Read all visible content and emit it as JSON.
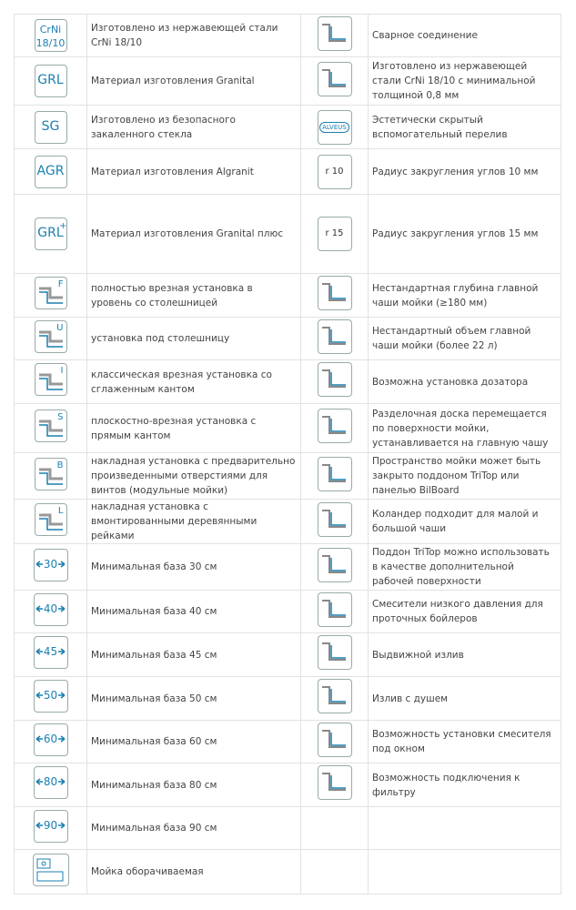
{
  "rows": [
    {
      "icon": "CrNi",
      "icon_sub": "18/10",
      "text": "Изготовлено из нержавеющей стали CrNi 18/10",
      "text2": "Сварное соединение"
    },
    {
      "icon": "GRL",
      "text": "Материал изготовления Granital",
      "text2": "Изготовлено из нержавеющей стали CrNi 18/10 с минимальной толщиной 0,8 мм"
    },
    {
      "icon": "SG",
      "text": "Изготовлено из безопасного закаленного стекла",
      "icon2": "ALVEUS",
      "text2": "Эстетически скрытый вспомогательный перелив"
    },
    {
      "icon": "AGR",
      "text": "Материал изготовления Algranit",
      "icon2": "r 10",
      "text2": "Радиус закругления углов 10 мм"
    },
    {
      "icon": "GRL",
      "icon_sup": "+",
      "text": "Материал изготовления Granital плюс",
      "icon2": "r 15",
      "text2": "Радиус закругления углов 15 мм"
    },
    {
      "icon": "F",
      "text": "полностью врезная установка в уровень со столешницей",
      "text2": "Нестандартная глубина главной чаши мойки (≥180 мм)"
    },
    {
      "icon": "U",
      "text": "установка под столешницу",
      "text2": "Нестандартный объем главной чаши мойки (более 22 л)"
    },
    {
      "icon": "I",
      "text": "классическая врезная установка со сглаженным кантом",
      "text2": "Возможна установка дозатора"
    },
    {
      "icon": "S",
      "text": "плоскостно-врезная установка с прямым кантом",
      "text2": "Разделочная доска перемещается по поверхности мойки, устанавливается на главную чашу"
    },
    {
      "icon": "B",
      "text": "накладная установка с предварительно произведенными отверстиями для винтов (модульные мойки)",
      "text2": "Пространство мойки может быть закрыто поддоном TriTop или панелью BilBoard"
    },
    {
      "icon": "L",
      "text": "накладная установка с вмонтированными деревянными рейками",
      "text2": "Колaндер подходит для малой и большой чаши"
    },
    {
      "icon": "30",
      "text": "Минимальная база 30 см",
      "text2": "Поддон TriTop можно использовать в качестве дополнительной рабочей поверхности"
    },
    {
      "icon": "40",
      "text": "Минимальная база 40 см",
      "text2": "Смесители низкого давления для проточных бойлеров"
    },
    {
      "icon": "45",
      "text": "Минимальная база 45 см",
      "text2": "Выдвижной излив"
    },
    {
      "icon": "50",
      "text": "Минимальная база 50 см",
      "text2": "Излив с душем"
    },
    {
      "icon": "60",
      "text": "Минимальная база 60 см",
      "text2": "Возможность установки смесителя под окном"
    },
    {
      "icon": "80",
      "text": "Минимальная база 80 см",
      "text2": "Возможность подключения к фильтру"
    },
    {
      "icon": "90",
      "text": "Минимальная база 90 см"
    },
    {
      "text": "Мойка оборачиваемая"
    }
  ]
}
